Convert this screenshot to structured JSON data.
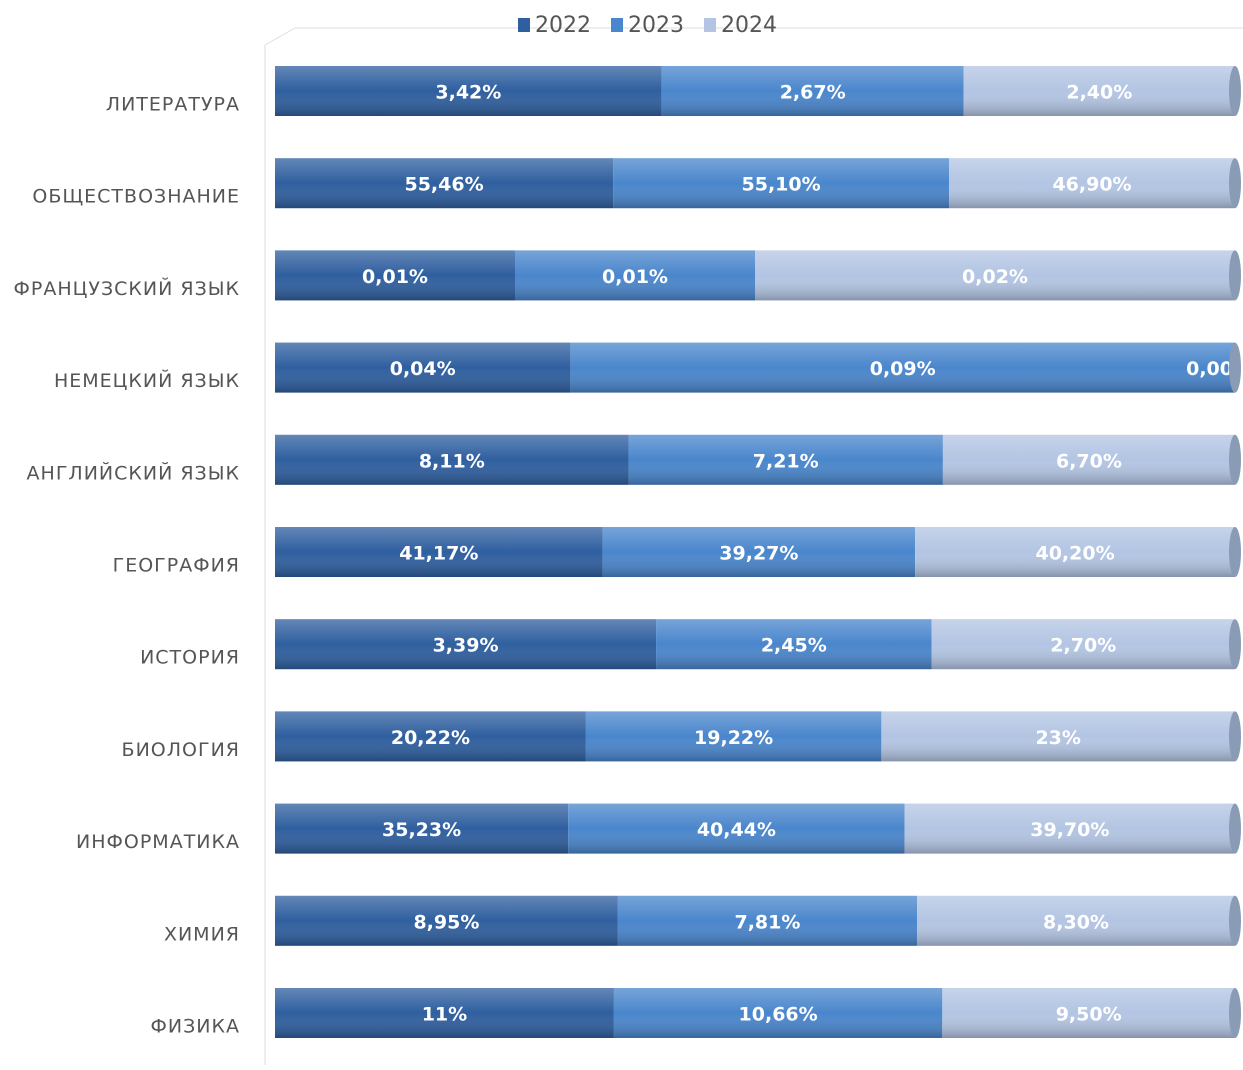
{
  "chart_data": {
    "type": "stacked_bar_100",
    "categories": [
      "ЛИТЕРАТУРА",
      "ОБЩЕСТВОЗНАНИЕ",
      "ФРАНЦУЗСКИЙ ЯЗЫК",
      "НЕМЕЦКИЙ ЯЗЫК",
      "АНГЛИЙСКИЙ ЯЗЫК",
      "ГЕОГРАФИЯ",
      "ИСТОРИЯ",
      "БИОЛОГИЯ",
      "ИНФОРМАТИКА",
      "ХИМИЯ",
      "ФИЗИКА"
    ],
    "series": [
      {
        "name": "2022",
        "color": "#2f5f9f",
        "values": [
          3.42,
          55.46,
          0.01,
          0.04,
          8.11,
          41.17,
          3.39,
          20.22,
          35.23,
          8.95,
          11
        ],
        "value_labels": [
          "3,42%",
          "55,46%",
          "0,01%",
          "0,04%",
          "8,11%",
          "41,17%",
          "3,39%",
          "20,22%",
          "35,23%",
          "8,95%",
          "11%"
        ]
      },
      {
        "name": "2023",
        "color": "#4a86cc",
        "values": [
          2.67,
          55.1,
          0.01,
          0.09,
          7.21,
          39.27,
          2.45,
          19.22,
          40.44,
          7.81,
          10.66
        ],
        "value_labels": [
          "2,67%",
          "55,10%",
          "0,01%",
          "0,09%",
          "7,21%",
          "39,27%",
          "2,45%",
          "19,22%",
          "40,44%",
          "7,81%",
          "10,66%"
        ]
      },
      {
        "name": "2024",
        "color": "#b3c5e3",
        "values": [
          2.4,
          46.9,
          0.02,
          0.0,
          6.7,
          40.2,
          2.7,
          23,
          39.7,
          8.3,
          9.5
        ],
        "value_labels": [
          "2,40%",
          "46,90%",
          "0,02%",
          "0,00",
          "6,70%",
          "40,20%",
          "2,70%",
          "23%",
          "39,70%",
          "8,30%",
          "9,50%"
        ]
      }
    ],
    "legend": "top"
  }
}
